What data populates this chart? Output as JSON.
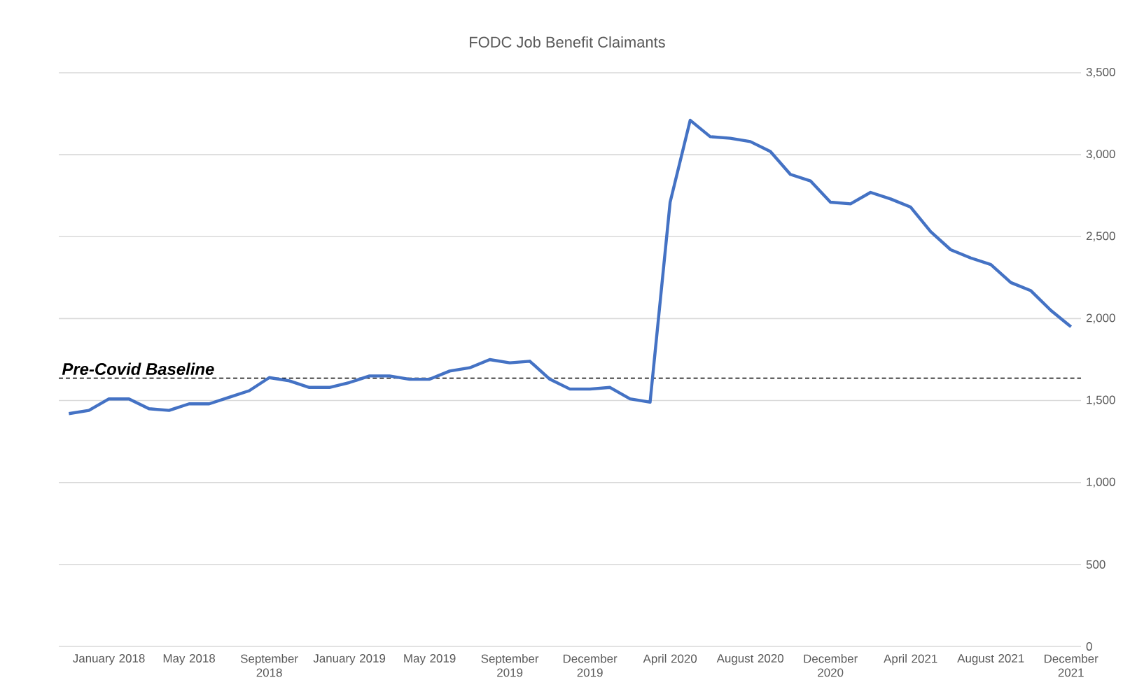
{
  "chart_data": {
    "type": "line",
    "title": "FODC Job Benefit Claimants",
    "categories": [
      null,
      null,
      "January 2018",
      null,
      null,
      null,
      "May 2018",
      null,
      null,
      null,
      "September 2018",
      null,
      null,
      null,
      "January 2019",
      null,
      null,
      null,
      "May 2019",
      null,
      null,
      null,
      "September 2019",
      null,
      null,
      null,
      "December 2019",
      null,
      null,
      null,
      "April 2020",
      null,
      null,
      null,
      "August 2020",
      null,
      null,
      null,
      "December 2020",
      null,
      null,
      null,
      "April 2021",
      null,
      null,
      null,
      "August 2021",
      null,
      null,
      null,
      "December 2021"
    ],
    "series": [
      {
        "color": "#4472c4",
        "values": [
          1420,
          1440,
          1510,
          1510,
          1450,
          1440,
          1480,
          1480,
          1520,
          1560,
          1640,
          1620,
          1580,
          1580,
          1610,
          1650,
          1650,
          1630,
          1630,
          1680,
          1700,
          1750,
          1730,
          1740,
          1630,
          1570,
          1570,
          1580,
          1510,
          1490,
          2710,
          3210,
          3110,
          3100,
          3080,
          3020,
          2880,
          2840,
          2710,
          2700,
          2770,
          2730,
          2680,
          2530,
          2420,
          2370,
          2330,
          2220,
          2170,
          2050,
          1950
        ]
      }
    ],
    "ylim": [
      0,
      3500
    ],
    "yticks": [
      0,
      500,
      {
        "value": 1000,
        "label": "1,000"
      },
      {
        "value": 1500,
        "label": "1,500"
      },
      {
        "value": 2000,
        "label": "2,000"
      },
      {
        "value": 2500,
        "label": "2,500"
      },
      {
        "value": 3000,
        "label": "3,000"
      },
      {
        "value": 3500,
        "label": "3,500"
      }
    ],
    "grid": "y",
    "ref_lines": [
      {
        "axis": "y",
        "value": 1637,
        "label": "**Pre-Covid Baseline**",
        "color": "#000000",
        "line_style": "dashed"
      }
    ]
  }
}
